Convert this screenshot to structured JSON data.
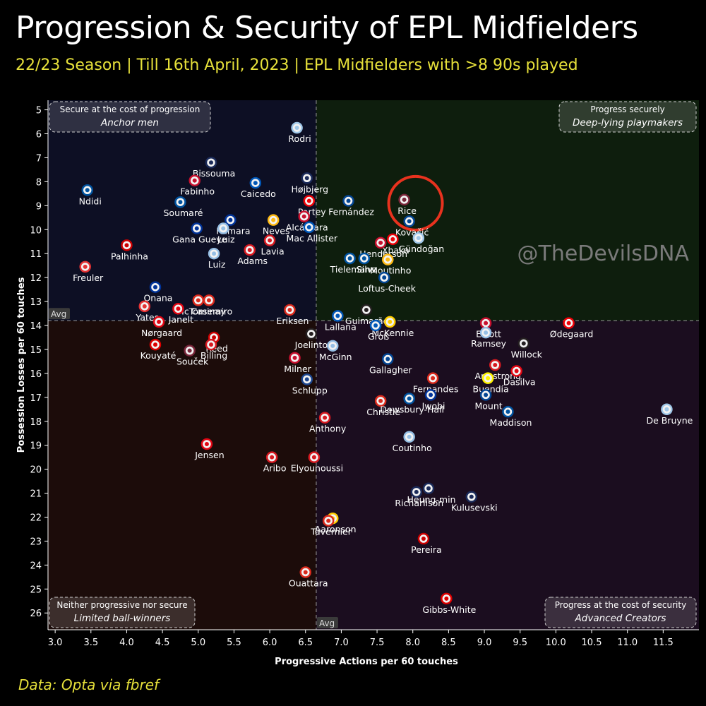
{
  "title": "Progression & Security of EPL Midfielders",
  "subtitle": "22/23 Season | Till 16th April, 2023 | EPL Midfielders with >8 90s played",
  "source": "Data: Opta via fbref",
  "watermark": "@TheDevilsDNA",
  "colors": {
    "background": "#000000",
    "subtitle": "#e6e03a",
    "highlight_circle": "#e8321e",
    "quadrant_top_left": "#0d0f24",
    "quadrant_top_right": "#0e1e0d",
    "quadrant_bottom_left": "#1c0c0a",
    "quadrant_bottom_right": "#1b0d1f"
  },
  "chart_data": {
    "type": "scatter",
    "xlabel": "Progressive Actions per 60 touches",
    "ylabel": "Possession Losses per 60 touches",
    "xlim": [
      2.9,
      12.0
    ],
    "ylim": [
      26.7,
      4.6
    ],
    "y_inverted": true,
    "x_ticks": [
      "3.0",
      "3.5",
      "4.0",
      "4.5",
      "5.0",
      "5.5",
      "6.0",
      "6.5",
      "7.0",
      "7.5",
      "8.0",
      "8.5",
      "9.0",
      "9.5",
      "10.0",
      "10.5",
      "11.0",
      "11.5"
    ],
    "y_ticks": [
      "5",
      "6",
      "7",
      "8",
      "9",
      "10",
      "11",
      "12",
      "13",
      "14",
      "15",
      "16",
      "17",
      "18",
      "19",
      "20",
      "21",
      "22",
      "23",
      "24",
      "25",
      "26"
    ],
    "x_avg": 6.65,
    "y_avg": 13.8,
    "avg_label": "Avg",
    "highlight": "Rice",
    "quadrants": [
      {
        "position": "top-left",
        "top": "Secure at the cost of progression",
        "bottom": "Anchor men"
      },
      {
        "position": "top-right",
        "top": "Progress securely",
        "bottom": "Deep-lying playmakers"
      },
      {
        "position": "bottom-left",
        "top": "Neither progressive nor secure",
        "bottom": "Limited ball-winners"
      },
      {
        "position": "bottom-right",
        "top": "Progress at the cost of security",
        "bottom": "Advanced Creators"
      }
    ],
    "points": [
      {
        "name": "Rodri",
        "x": 6.38,
        "y": 5.75,
        "color": "#9fc7e8"
      },
      {
        "name": "Bissouma",
        "x": 5.18,
        "y": 7.2,
        "color": "#1b2b5a"
      },
      {
        "name": "Højbjerg",
        "x": 6.52,
        "y": 7.85,
        "color": "#1b2b5a"
      },
      {
        "name": "Fabinho",
        "x": 4.95,
        "y": 7.95,
        "color": "#c8102e"
      },
      {
        "name": "Caicedo",
        "x": 5.8,
        "y": 8.05,
        "color": "#0057b8"
      },
      {
        "name": "Ndidi",
        "x": 3.45,
        "y": 8.35,
        "color": "#0053a0"
      },
      {
        "name": "Fernández",
        "x": 7.1,
        "y": 8.8,
        "color": "#034694"
      },
      {
        "name": "Rice",
        "x": 7.88,
        "y": 8.75,
        "color": "#7a263a"
      },
      {
        "name": "Soumaré",
        "x": 4.75,
        "y": 8.85,
        "color": "#0053a0"
      },
      {
        "name": "Partey",
        "x": 6.55,
        "y": 8.8,
        "color": "#ef0107"
      },
      {
        "name": "Alcántara",
        "x": 6.48,
        "y": 9.45,
        "color": "#c8102e"
      },
      {
        "name": "Kamara",
        "x": 5.45,
        "y": 9.6,
        "color": "#003399"
      },
      {
        "name": "Neves",
        "x": 6.05,
        "y": 9.6,
        "color": "#fdb913"
      },
      {
        "name": "Mac Allister",
        "x": 6.55,
        "y": 9.9,
        "color": "#0057b8"
      },
      {
        "name": "Kovačić",
        "x": 7.95,
        "y": 9.65,
        "color": "#034694"
      },
      {
        "name": "Gana Gueye",
        "x": 4.98,
        "y": 9.95,
        "color": "#003399"
      },
      {
        "name": "Luiz",
        "x": 5.35,
        "y": 9.95,
        "color": "#95bfe5"
      },
      {
        "name": "Gündoğan",
        "x": 8.08,
        "y": 10.35,
        "color": "#9fc7e8"
      },
      {
        "name": "Xhaka",
        "x": 7.72,
        "y": 10.4,
        "color": "#ef0107"
      },
      {
        "name": "Lavia",
        "x": 6.0,
        "y": 10.45,
        "color": "#d71920"
      },
      {
        "name": "Henderson",
        "x": 7.55,
        "y": 10.55,
        "color": "#c8102e"
      },
      {
        "name": "Palhinha",
        "x": 4.0,
        "y": 10.65,
        "color": "#cc0000"
      },
      {
        "name": "Adams",
        "x": 5.72,
        "y": 10.85,
        "color": "#d71920"
      },
      {
        "name": "Luiz",
        "x": 5.22,
        "y": 11.0,
        "color": "#95bfe5"
      },
      {
        "name": "Tielemans",
        "x": 7.12,
        "y": 11.2,
        "color": "#0053a0"
      },
      {
        "name": "Silva",
        "x": 7.32,
        "y": 11.2,
        "color": "#0053a0"
      },
      {
        "name": "Moutinho",
        "x": 7.65,
        "y": 11.25,
        "color": "#fdb913"
      },
      {
        "name": "Loftus-Cheek",
        "x": 7.6,
        "y": 12.0,
        "color": "#034694"
      },
      {
        "name": "Freuler",
        "x": 3.42,
        "y": 11.55,
        "color": "#e53233"
      },
      {
        "name": "Onana",
        "x": 4.4,
        "y": 12.4,
        "color": "#003399"
      },
      {
        "name": "McTominay",
        "x": 5.0,
        "y": 12.95,
        "color": "#da291c"
      },
      {
        "name": "Casemiro",
        "x": 5.15,
        "y": 12.95,
        "color": "#da291c"
      },
      {
        "name": "Yates",
        "x": 4.25,
        "y": 13.2,
        "color": "#e53233"
      },
      {
        "name": "Janelt",
        "x": 4.72,
        "y": 13.3,
        "color": "#e30613"
      },
      {
        "name": "Lallana",
        "x": 6.95,
        "y": 13.6,
        "color": "#0057b8"
      },
      {
        "name": "Guimarães",
        "x": 7.35,
        "y": 13.35,
        "color": "#241f20"
      },
      {
        "name": "Eriksen",
        "x": 6.28,
        "y": 13.35,
        "color": "#da291c"
      },
      {
        "name": "Nørgaard",
        "x": 4.45,
        "y": 13.85,
        "color": "#e30613"
      },
      {
        "name": "McKennie",
        "x": 7.68,
        "y": 13.85,
        "color": "#ffcd00"
      },
      {
        "name": "Groß",
        "x": 7.48,
        "y": 14.0,
        "color": "#0057b8"
      },
      {
        "name": "Elliott",
        "x": 9.02,
        "y": 13.9,
        "color": "#c8102e"
      },
      {
        "name": "Ødegaard",
        "x": 10.18,
        "y": 13.9,
        "color": "#ef0107"
      },
      {
        "name": "Joelinton",
        "x": 6.58,
        "y": 14.35,
        "color": "#241f20"
      },
      {
        "name": "Reed",
        "x": 5.22,
        "y": 14.5,
        "color": "#cc0000"
      },
      {
        "name": "Ramsey",
        "x": 9.02,
        "y": 14.3,
        "color": "#95bfe5"
      },
      {
        "name": "Willock",
        "x": 9.55,
        "y": 14.75,
        "color": "#241f20"
      },
      {
        "name": "Kouyaté",
        "x": 4.4,
        "y": 14.8,
        "color": "#dd0000"
      },
      {
        "name": "Billing",
        "x": 5.18,
        "y": 14.8,
        "color": "#d71920"
      },
      {
        "name": "Souček",
        "x": 4.88,
        "y": 15.05,
        "color": "#7a263a"
      },
      {
        "name": "McGinn",
        "x": 6.88,
        "y": 14.85,
        "color": "#95bfe5"
      },
      {
        "name": "Milner",
        "x": 6.35,
        "y": 15.35,
        "color": "#c8102e"
      },
      {
        "name": "Gallagher",
        "x": 7.65,
        "y": 15.4,
        "color": "#034694"
      },
      {
        "name": "Armstrong",
        "x": 9.15,
        "y": 15.65,
        "color": "#d71920"
      },
      {
        "name": "Dasilva",
        "x": 9.45,
        "y": 15.9,
        "color": "#e30613"
      },
      {
        "name": "Fernandes",
        "x": 8.28,
        "y": 16.2,
        "color": "#da291c"
      },
      {
        "name": "Buendía",
        "x": 9.05,
        "y": 16.2,
        "color": "#fff200"
      },
      {
        "name": "Schlupp",
        "x": 6.52,
        "y": 16.25,
        "color": "#1b458f"
      },
      {
        "name": "Christie",
        "x": 7.55,
        "y": 17.15,
        "color": "#da291c"
      },
      {
        "name": "Dewsbury-Hall",
        "x": 7.95,
        "y": 17.05,
        "color": "#0053a0"
      },
      {
        "name": "Iwobi",
        "x": 8.25,
        "y": 16.9,
        "color": "#003399"
      },
      {
        "name": "Mount",
        "x": 9.02,
        "y": 16.9,
        "color": "#034694"
      },
      {
        "name": "Maddison",
        "x": 9.33,
        "y": 17.6,
        "color": "#0053a0"
      },
      {
        "name": "De Bruyne",
        "x": 11.55,
        "y": 17.5,
        "color": "#9fc7e8"
      },
      {
        "name": "Anthony",
        "x": 6.77,
        "y": 17.85,
        "color": "#d71920"
      },
      {
        "name": "Coutinho",
        "x": 7.95,
        "y": 18.65,
        "color": "#95bfe5"
      },
      {
        "name": "Jensen",
        "x": 5.12,
        "y": 18.95,
        "color": "#e30613"
      },
      {
        "name": "Aribo",
        "x": 6.03,
        "y": 19.5,
        "color": "#d71920"
      },
      {
        "name": "Elyounoussi",
        "x": 6.62,
        "y": 19.5,
        "color": "#d71920"
      },
      {
        "name": "Heung-min",
        "x": 8.22,
        "y": 20.8,
        "color": "#1b2b5a"
      },
      {
        "name": "Richarlison",
        "x": 8.05,
        "y": 20.95,
        "color": "#1b2b5a"
      },
      {
        "name": "Kulusevski",
        "x": 8.82,
        "y": 21.15,
        "color": "#1b2b5a"
      },
      {
        "name": "Aaronson",
        "x": 6.88,
        "y": 22.05,
        "color": "#ffcd00"
      },
      {
        "name": "Tavernier",
        "x": 6.82,
        "y": 22.15,
        "color": "#da291c"
      },
      {
        "name": "Pereira",
        "x": 8.15,
        "y": 22.9,
        "color": "#cc0000"
      },
      {
        "name": "Ouattara",
        "x": 6.5,
        "y": 24.3,
        "color": "#da291c"
      },
      {
        "name": "Gibbs-White",
        "x": 8.47,
        "y": 25.4,
        "color": "#dd0000"
      }
    ]
  }
}
